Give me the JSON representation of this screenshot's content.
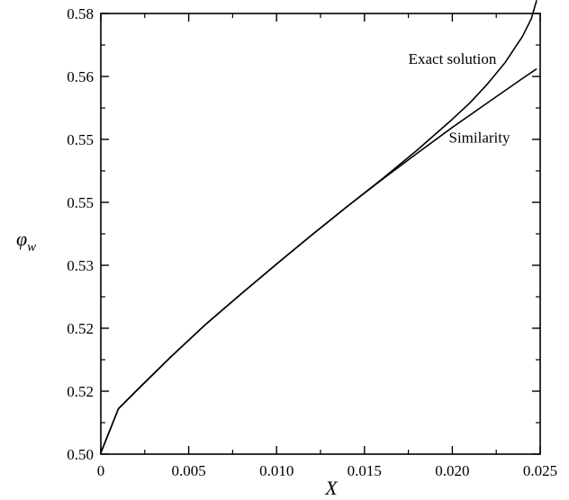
{
  "chart_data": {
    "type": "line",
    "title": "",
    "xlabel": "X",
    "ylabel": "φ",
    "ylabel_subscript": "w",
    "xlim": [
      0,
      0.025
    ],
    "ylim_ticks": [
      "0.50",
      "0.52",
      "0.52",
      "0.53",
      "0.55",
      "0.55",
      "0.56",
      "0.58"
    ],
    "x_ticks": [
      0,
      0.005,
      0.01,
      0.015,
      0.02,
      0.025
    ],
    "x_tick_labels": [
      "0",
      "0.005",
      "0.010",
      "0.015",
      "0.020",
      "0.025"
    ],
    "y_tick_labels": [
      "0.50",
      "0.52",
      "0.52",
      "0.53",
      "0.55",
      "0.55",
      "0.56",
      "0.58"
    ],
    "grid": false,
    "series": [
      {
        "name": "Exact solution",
        "x": [
          0,
          0.001,
          0.002,
          0.004,
          0.006,
          0.008,
          0.01,
          0.012,
          0.014,
          0.016,
          0.018,
          0.02,
          0.021,
          0.022,
          0.023,
          0.024,
          0.0245,
          0.0248
        ],
        "y_index": [
          0.02,
          0.72,
          1.0,
          1.55,
          2.07,
          2.55,
          3.02,
          3.48,
          3.93,
          4.37,
          4.83,
          5.32,
          5.58,
          5.88,
          6.22,
          6.64,
          6.92,
          7.21
        ]
      },
      {
        "name": "Similarity",
        "x": [
          0,
          0.001,
          0.002,
          0.004,
          0.006,
          0.008,
          0.01,
          0.012,
          0.014,
          0.016,
          0.018,
          0.02,
          0.022,
          0.024,
          0.0248
        ],
        "y_index": [
          0.02,
          0.72,
          1.0,
          1.55,
          2.07,
          2.55,
          3.02,
          3.48,
          3.93,
          4.36,
          4.78,
          5.19,
          5.58,
          5.97,
          6.12
        ]
      }
    ],
    "annotations": [
      {
        "text": "Exact solution",
        "x": 0.0175,
        "y_index": 6.2
      },
      {
        "text": "Similarity",
        "x": 0.0198,
        "y_index": 4.95
      }
    ]
  }
}
